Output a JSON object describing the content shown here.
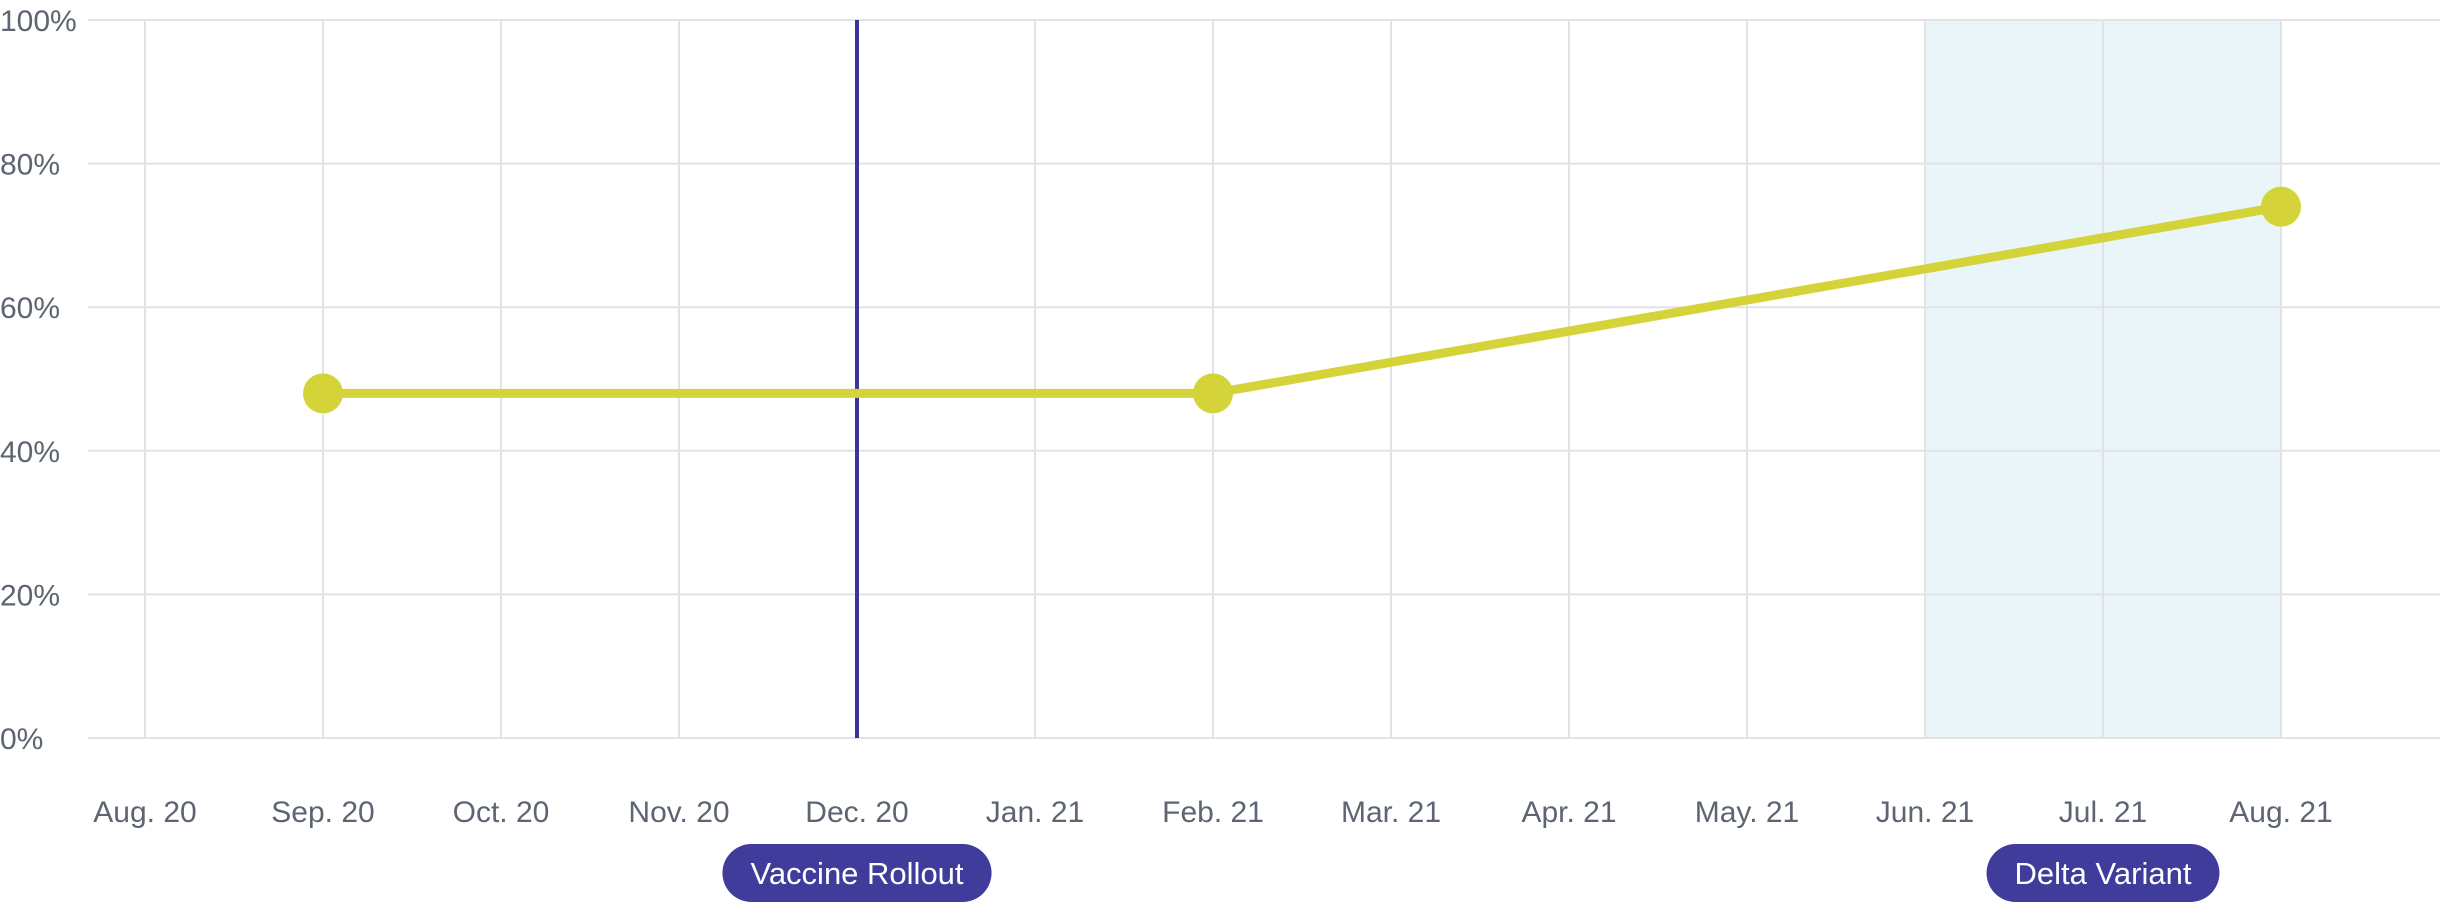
{
  "chart_data": {
    "type": "line",
    "x": [
      "Aug. 20",
      "Sep. 20",
      "Oct. 20",
      "Nov. 20",
      "Dec. 20",
      "Jan. 21",
      "Feb. 21",
      "Mar. 21",
      "Apr. 21",
      "May. 21",
      "Jun. 21",
      "Jul. 21",
      "Aug. 21"
    ],
    "yticks": [
      "0%",
      "20%",
      "40%",
      "60%",
      "80%",
      "100%"
    ],
    "ylim": [
      0,
      100
    ],
    "grid": true,
    "series": [
      {
        "points": [
          {
            "x": "Sep. 20",
            "y": 48
          },
          {
            "x": "Feb. 21",
            "y": 48
          },
          {
            "x": "Aug. 21",
            "y": 74
          }
        ],
        "color": "#d4d43a"
      }
    ],
    "annotations": [
      {
        "type": "vline",
        "x": "Dec. 20",
        "label": "Vaccine Rollout",
        "color": "#3a3596"
      },
      {
        "type": "band",
        "x_start": "Jun. 21",
        "x_end": "Aug. 21",
        "label": "Delta Variant",
        "color": "#e9f5f8"
      }
    ]
  },
  "colors": {
    "grid": "#e1e3e6",
    "tick_text": "#5d6572",
    "line": "#d4d43a",
    "pill": "#3f3c9c",
    "band": "#e9f5f8",
    "vline": "#3a3596"
  }
}
